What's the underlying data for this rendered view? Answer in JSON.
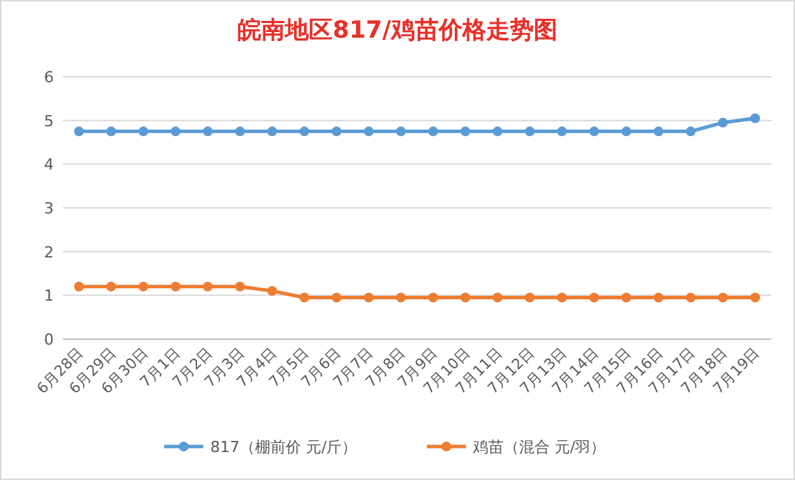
{
  "chart_data": {
    "type": "line",
    "title": "皖南地区817/鸡苗价格走势图",
    "categories": [
      "6月28日",
      "6月29日",
      "6月30日",
      "7月1日",
      "7月2日",
      "7月3日",
      "7月4日",
      "7月5日",
      "7月6日",
      "7月7日",
      "7月8日",
      "7月9日",
      "7月10日",
      "7月11日",
      "7月12日",
      "7月13日",
      "7月14日",
      "7月15日",
      "7月16日",
      "7月17日",
      "7月18日",
      "7月19日"
    ],
    "series": [
      {
        "name": "817（棚前价 元/斤）",
        "color": "#5b9bd5",
        "values": [
          4.75,
          4.75,
          4.75,
          4.75,
          4.75,
          4.75,
          4.75,
          4.75,
          4.75,
          4.75,
          4.75,
          4.75,
          4.75,
          4.75,
          4.75,
          4.75,
          4.75,
          4.75,
          4.75,
          4.75,
          4.95,
          5.05
        ]
      },
      {
        "name": "鸡苗（混合 元/羽）",
        "color": "#ed7d31",
        "values": [
          1.2,
          1.2,
          1.2,
          1.2,
          1.2,
          1.2,
          1.1,
          0.95,
          0.95,
          0.95,
          0.95,
          0.95,
          0.95,
          0.95,
          0.95,
          0.95,
          0.95,
          0.95,
          0.95,
          0.95,
          0.95,
          0.95
        ]
      }
    ],
    "ylim": [
      0,
      6
    ],
    "yticks": [
      0,
      1,
      2,
      3,
      4,
      5,
      6
    ],
    "grid": "y",
    "legend": "bottom",
    "marker": "circle",
    "line_style": "solid"
  }
}
